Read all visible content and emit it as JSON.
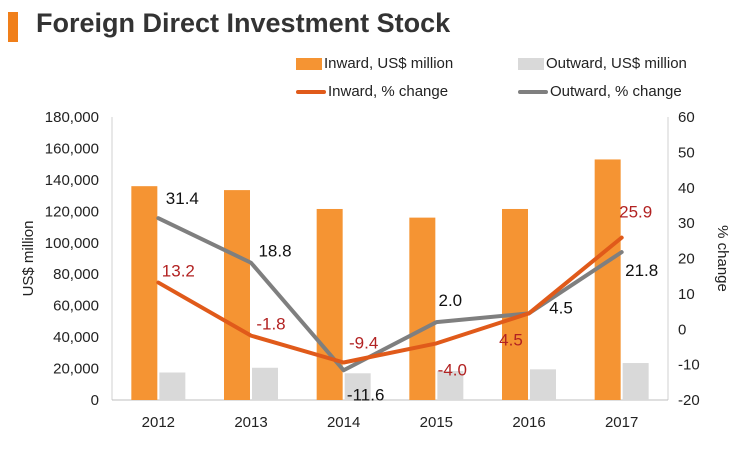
{
  "title": "Foreign Direct Investment Stock",
  "colors": {
    "inward": "#f59433",
    "outward": "#d9d9d9",
    "inward_line": "#e05a1a",
    "outward_line": "#7f7f7f",
    "accent": "#f07f1a",
    "pct_inward_label": "#b22222"
  },
  "legend": {
    "inward_bar": "Inward, US$ million",
    "outward_bar": "Outward, US$ million",
    "inward_line": "Inward, % change",
    "outward_line": "Outward, % change"
  },
  "chart_data": {
    "type": "bar",
    "title": "Foreign Direct Investment Stock",
    "categories": [
      "2012",
      "2013",
      "2014",
      "2015",
      "2016",
      "2017"
    ],
    "series": [
      {
        "name": "Inward, US$ million",
        "axis": "left",
        "kind": "bar",
        "values": [
          136000,
          133500,
          121500,
          116000,
          121500,
          153000
        ]
      },
      {
        "name": "Outward, US$ million",
        "axis": "left",
        "kind": "bar",
        "values": [
          17500,
          20500,
          17000,
          18500,
          19500,
          23500
        ]
      },
      {
        "name": "Inward, % change",
        "axis": "right",
        "kind": "line",
        "values": [
          13.2,
          -1.8,
          -9.4,
          -4.0,
          4.5,
          25.9
        ],
        "labels": [
          "13.2",
          "-1.8",
          "-9.4",
          "-4.0",
          "4.5",
          "25.9"
        ]
      },
      {
        "name": "Outward, % change",
        "axis": "right",
        "kind": "line",
        "values": [
          31.4,
          18.8,
          -11.6,
          2.0,
          4.5,
          21.8
        ],
        "labels": [
          "31.4",
          "18.8",
          "-11.6",
          "2.0",
          "4.5",
          "21.8"
        ]
      }
    ],
    "ylabel": "US$ million",
    "y2label": "% change",
    "ylim": [
      0,
      180000
    ],
    "y2lim": [
      -20,
      60
    ],
    "yticks": [
      "0",
      "20,000",
      "40,000",
      "60,000",
      "80,000",
      "100,000",
      "120,000",
      "140,000",
      "160,000",
      "180,000"
    ],
    "y2ticks": [
      "-20",
      "-10",
      "0",
      "10",
      "20",
      "30",
      "40",
      "50",
      "60"
    ]
  }
}
